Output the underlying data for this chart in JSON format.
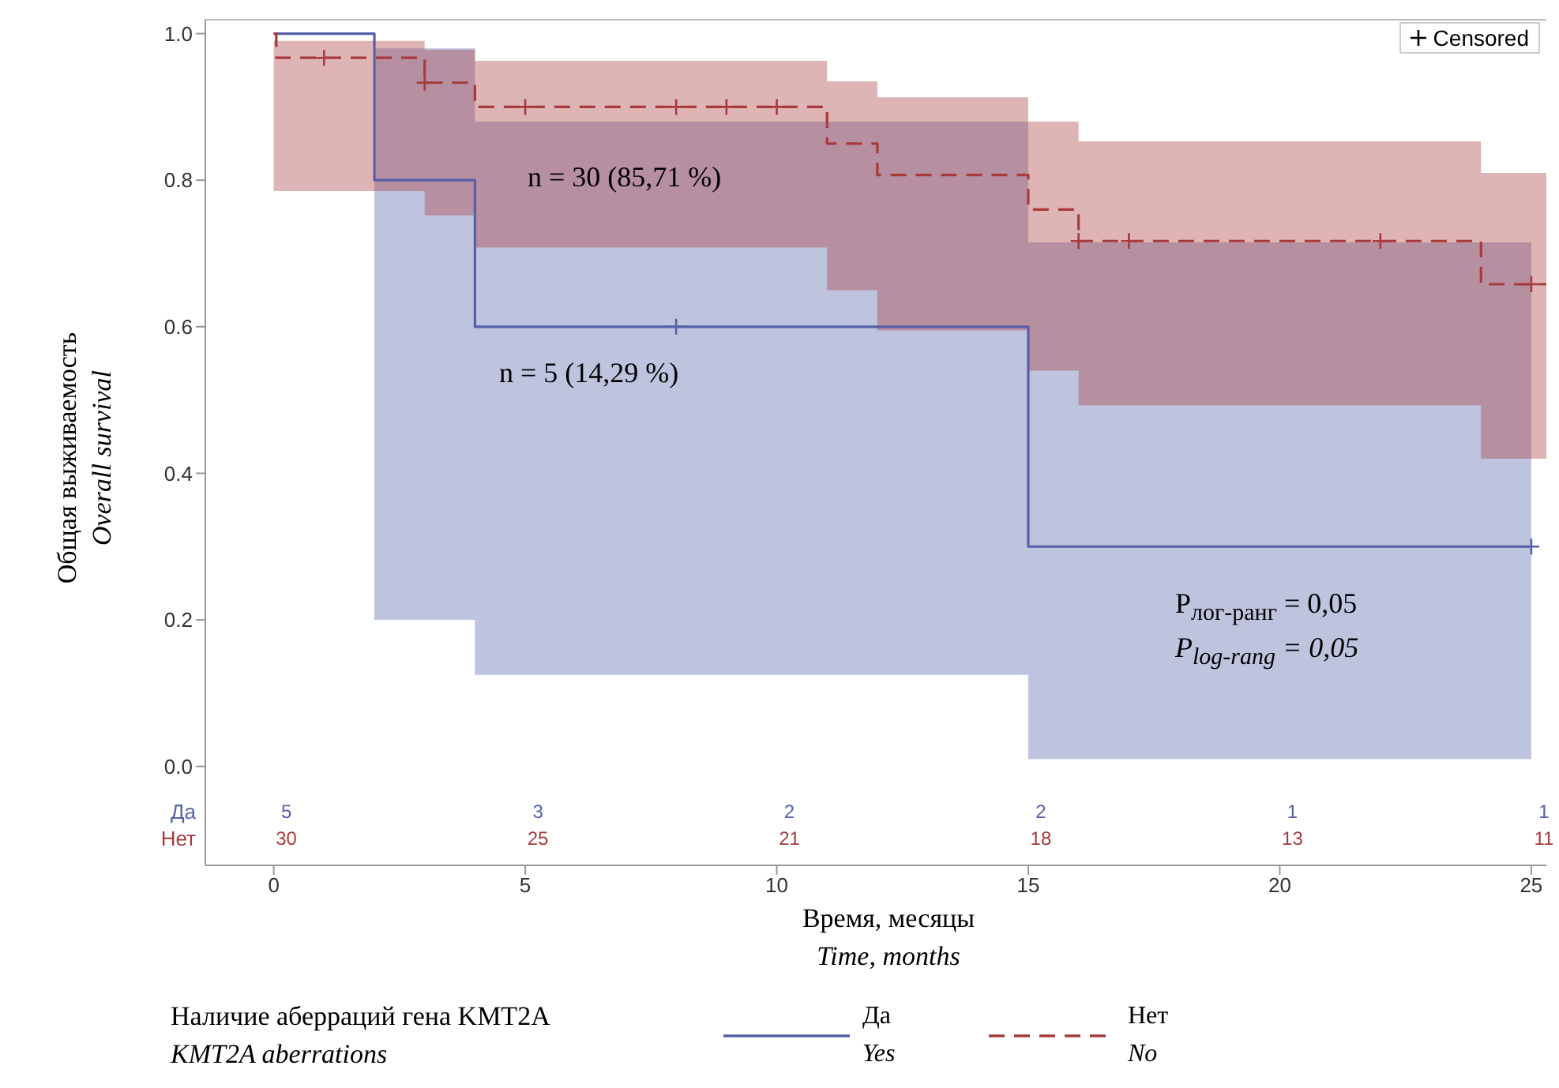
{
  "chart_data": {
    "type": "step",
    "xlabel": "Время, месяцы\nTime, months",
    "ylabel": "Общая выживаемость\nOverall survival",
    "legend_title": "Наличие аберраций гена KMT2A\nKMT2A aberrations",
    "legend": "bottom",
    "xlim": [
      -1.36,
      25.3
    ],
    "ylim": [
      -0.135,
      1.02
    ],
    "xticks": [
      0,
      5,
      10,
      15,
      20,
      25
    ],
    "yticks": [
      {
        "value": 0,
        "label": "0.0"
      },
      {
        "value": 0.2,
        "label": "0.2"
      },
      {
        "value": 0.4,
        "label": "0.4"
      },
      {
        "value": 0.6,
        "label": "0.6"
      },
      {
        "value": 0.8,
        "label": "0.8"
      },
      {
        "value": 1,
        "label": "1.0"
      }
    ],
    "series": [
      {
        "name": "Да\nYes",
        "color": "#5560a8",
        "line_style": "solid",
        "x": [
          0,
          2,
          4,
          15,
          25
        ],
        "values": [
          1,
          0.8,
          0.6,
          0.3,
          0.3
        ],
        "lower": [
          1,
          0.2,
          0.125,
          0.01,
          0.01
        ],
        "upper": [
          1,
          0.98,
          0.88,
          0.715,
          0.715
        ]
      },
      {
        "name": "Нет\nNo",
        "color": "#a83a3c",
        "line_style": "dashed",
        "x": [
          0,
          0.05,
          3,
          4,
          11,
          12,
          15,
          16,
          24,
          25.3
        ],
        "values": [
          1,
          0.967,
          0.933,
          0.9,
          0.85,
          0.807,
          0.76,
          0.717,
          0.658,
          0.658
        ],
        "lower": [
          0.785,
          0.785,
          0.752,
          0.708,
          0.65,
          0.595,
          0.54,
          0.493,
          0.42,
          0.42
        ],
        "upper": [
          0.99,
          0.99,
          0.978,
          0.963,
          0.935,
          0.913,
          0.88,
          0.853,
          0.81,
          0.81
        ]
      },
      {
        "type": "scatter",
        "marker": "cross",
        "color": "#000000",
        "x": [
          1,
          3,
          5,
          8,
          9,
          10,
          16,
          17,
          22,
          25,
          8,
          25
        ],
        "values": [
          0.967,
          0.933,
          0.9,
          0.9,
          0.9,
          0.9,
          0.717,
          0.717,
          0.717,
          0.658,
          0.6,
          0.3
        ],
        "colors": [
          "#a83a3c",
          "#a83a3c",
          "#a83a3c",
          "#a83a3c",
          "#a83a3c",
          "#a83a3c",
          "#a83a3c",
          "#a83a3c",
          "#a83a3c",
          "#a83a3c",
          "#5560a8",
          "#5560a8"
        ]
      }
    ],
    "annotations": [
      "n = 30 (85,71 %)",
      "n = 5 (14,29 %)",
      "P$_{лог-ранг}$ = 0,05",
      "P$_{log-rang}$ = 0,05",
      "Да",
      "Нет",
      "5",
      "3",
      "2",
      "2",
      "1",
      "1",
      "30",
      "25",
      "21",
      "18",
      "13",
      "11",
      "Censored"
    ]
  }
}
